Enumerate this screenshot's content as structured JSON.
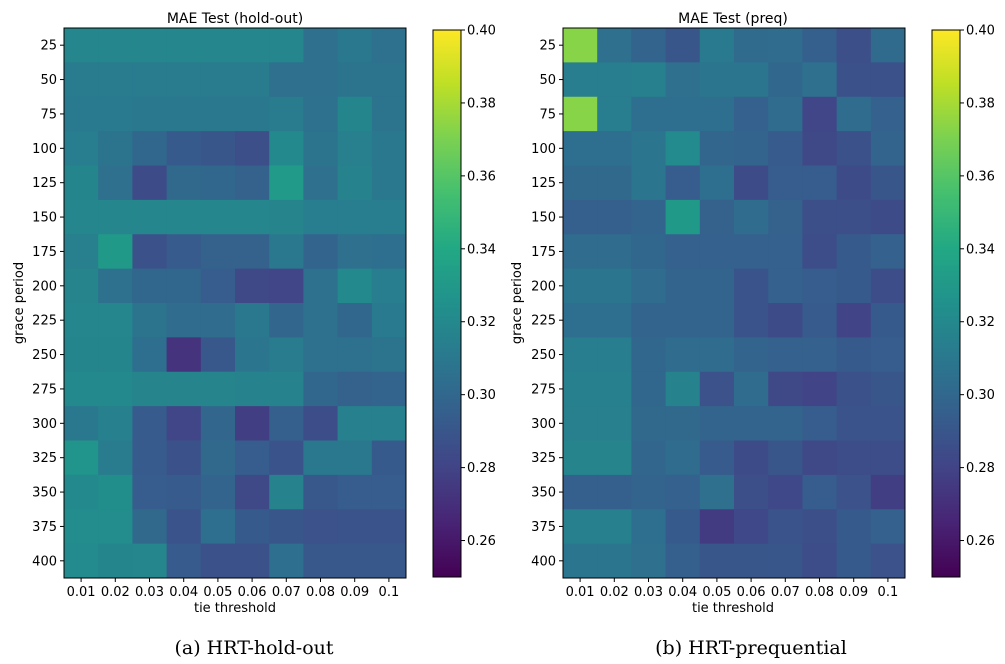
{
  "colormap": "viridis",
  "chart_data": [
    {
      "type": "heatmap",
      "title": "MAE Test (hold-out)",
      "caption": "(a) HRT-hold-out",
      "xlabel": "tie threshold",
      "ylabel": "grace period",
      "x_categories": [
        "0.01",
        "0.02",
        "0.03",
        "0.04",
        "0.05",
        "0.06",
        "0.07",
        "0.08",
        "0.09",
        "0.1"
      ],
      "y_categories": [
        "25",
        "50",
        "75",
        "100",
        "125",
        "150",
        "175",
        "200",
        "225",
        "250",
        "275",
        "300",
        "325",
        "350",
        "375",
        "400"
      ],
      "colorbar": {
        "vmin": 0.25,
        "vmax": 0.4,
        "ticks": [
          "0.26",
          "0.28",
          "0.30",
          "0.32",
          "0.34",
          "0.36",
          "0.38",
          "0.40"
        ]
      },
      "values": [
        [
          0.319,
          0.319,
          0.319,
          0.319,
          0.319,
          0.319,
          0.319,
          0.305,
          0.31,
          0.306
        ],
        [
          0.312,
          0.312,
          0.312,
          0.312,
          0.312,
          0.312,
          0.305,
          0.305,
          0.307,
          0.307
        ],
        [
          0.311,
          0.311,
          0.31,
          0.31,
          0.31,
          0.31,
          0.312,
          0.306,
          0.318,
          0.307
        ],
        [
          0.313,
          0.307,
          0.3,
          0.292,
          0.29,
          0.286,
          0.32,
          0.307,
          0.314,
          0.31
        ],
        [
          0.318,
          0.305,
          0.284,
          0.301,
          0.3,
          0.297,
          0.331,
          0.305,
          0.316,
          0.31
        ],
        [
          0.319,
          0.319,
          0.319,
          0.319,
          0.319,
          0.319,
          0.317,
          0.313,
          0.313,
          0.313
        ],
        [
          0.314,
          0.33,
          0.287,
          0.293,
          0.297,
          0.297,
          0.31,
          0.298,
          0.305,
          0.304
        ],
        [
          0.317,
          0.306,
          0.3,
          0.3,
          0.294,
          0.283,
          0.281,
          0.306,
          0.32,
          0.313
        ],
        [
          0.319,
          0.319,
          0.307,
          0.303,
          0.303,
          0.31,
          0.299,
          0.306,
          0.3,
          0.311
        ],
        [
          0.318,
          0.318,
          0.304,
          0.272,
          0.291,
          0.309,
          0.312,
          0.306,
          0.306,
          0.307
        ],
        [
          0.32,
          0.32,
          0.317,
          0.317,
          0.317,
          0.316,
          0.316,
          0.3,
          0.297,
          0.298
        ],
        [
          0.31,
          0.315,
          0.293,
          0.281,
          0.299,
          0.277,
          0.295,
          0.285,
          0.315,
          0.315
        ],
        [
          0.327,
          0.312,
          0.293,
          0.287,
          0.301,
          0.294,
          0.289,
          0.31,
          0.31,
          0.292
        ],
        [
          0.32,
          0.323,
          0.294,
          0.293,
          0.298,
          0.283,
          0.316,
          0.291,
          0.294,
          0.294
        ],
        [
          0.322,
          0.322,
          0.301,
          0.289,
          0.304,
          0.292,
          0.29,
          0.288,
          0.289,
          0.289
        ],
        [
          0.321,
          0.318,
          0.319,
          0.293,
          0.287,
          0.287,
          0.304,
          0.291,
          0.291,
          0.291
        ]
      ]
    },
    {
      "type": "heatmap",
      "title": "MAE Test (preq)",
      "caption": "(b) HRT-prequential",
      "xlabel": "tie threshold",
      "ylabel": "grace period",
      "x_categories": [
        "0.01",
        "0.02",
        "0.03",
        "0.04",
        "0.05",
        "0.06",
        "0.07",
        "0.08",
        "0.09",
        "0.1"
      ],
      "y_categories": [
        "25",
        "50",
        "75",
        "100",
        "125",
        "150",
        "175",
        "200",
        "225",
        "250",
        "275",
        "300",
        "325",
        "350",
        "375",
        "400"
      ],
      "colorbar": {
        "vmin": 0.25,
        "vmax": 0.4,
        "ticks": [
          "0.26",
          "0.28",
          "0.30",
          "0.32",
          "0.34",
          "0.36",
          "0.38",
          "0.40"
        ]
      },
      "values": [
        [
          0.373,
          0.305,
          0.298,
          0.29,
          0.311,
          0.302,
          0.303,
          0.295,
          0.286,
          0.302
        ],
        [
          0.313,
          0.313,
          0.315,
          0.305,
          0.308,
          0.308,
          0.3,
          0.305,
          0.287,
          0.287
        ],
        [
          0.373,
          0.313,
          0.304,
          0.304,
          0.304,
          0.296,
          0.303,
          0.281,
          0.303,
          0.296
        ],
        [
          0.304,
          0.304,
          0.309,
          0.321,
          0.299,
          0.298,
          0.293,
          0.283,
          0.287,
          0.298
        ],
        [
          0.301,
          0.301,
          0.308,
          0.294,
          0.304,
          0.284,
          0.294,
          0.294,
          0.284,
          0.29
        ],
        [
          0.295,
          0.295,
          0.298,
          0.33,
          0.297,
          0.303,
          0.297,
          0.286,
          0.286,
          0.284
        ],
        [
          0.303,
          0.303,
          0.3,
          0.296,
          0.296,
          0.296,
          0.296,
          0.285,
          0.292,
          0.296
        ],
        [
          0.309,
          0.309,
          0.303,
          0.298,
          0.298,
          0.289,
          0.296,
          0.294,
          0.292,
          0.285
        ],
        [
          0.304,
          0.304,
          0.298,
          0.298,
          0.298,
          0.289,
          0.284,
          0.293,
          0.28,
          0.292
        ],
        [
          0.313,
          0.313,
          0.3,
          0.303,
          0.303,
          0.298,
          0.296,
          0.296,
          0.292,
          0.294
        ],
        [
          0.315,
          0.315,
          0.3,
          0.316,
          0.288,
          0.303,
          0.283,
          0.28,
          0.287,
          0.29
        ],
        [
          0.314,
          0.314,
          0.301,
          0.301,
          0.298,
          0.298,
          0.298,
          0.294,
          0.289,
          0.289
        ],
        [
          0.317,
          0.317,
          0.299,
          0.303,
          0.293,
          0.284,
          0.29,
          0.283,
          0.285,
          0.285
        ],
        [
          0.295,
          0.295,
          0.298,
          0.296,
          0.305,
          0.286,
          0.282,
          0.294,
          0.288,
          0.277
        ],
        [
          0.315,
          0.315,
          0.304,
          0.292,
          0.276,
          0.282,
          0.289,
          0.286,
          0.292,
          0.296
        ],
        [
          0.308,
          0.308,
          0.305,
          0.295,
          0.29,
          0.29,
          0.29,
          0.285,
          0.292,
          0.288
        ]
      ]
    }
  ]
}
